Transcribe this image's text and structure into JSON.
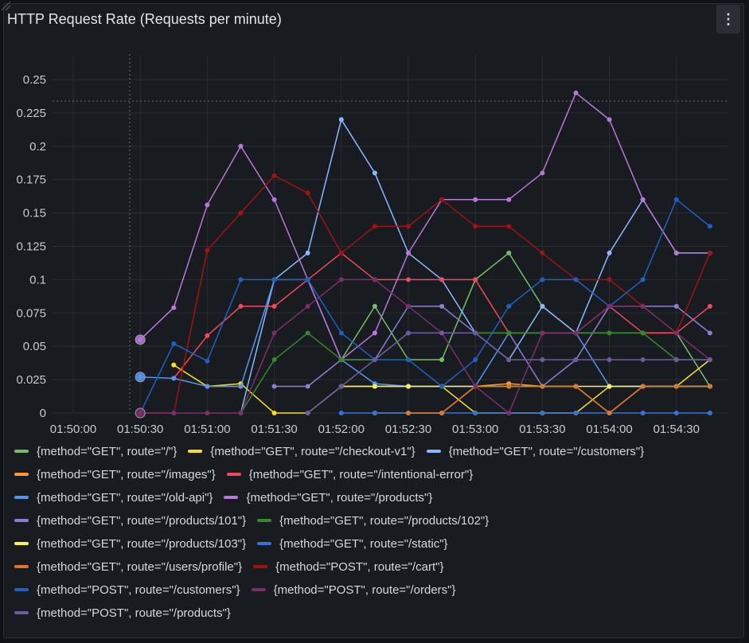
{
  "panel": {
    "title": "HTTP Request Rate (Requests per minute)",
    "menu_icon": "kebab-menu-icon"
  },
  "chart_data": {
    "type": "line",
    "title": "HTTP Request Rate (Requests per minute)",
    "xlabel": "",
    "ylabel": "",
    "ylim": [
      0,
      0.25
    ],
    "y_ticks": [
      "0",
      "0.025",
      "0.05",
      "0.075",
      "0.1",
      "0.125",
      "0.15",
      "0.175",
      "0.2",
      "0.225",
      "0.25"
    ],
    "x_ticks": [
      "01:50:00",
      "01:50:30",
      "01:51:00",
      "01:51:30",
      "01:52:00",
      "01:52:30",
      "01:53:00",
      "01:53:30",
      "01:54:00",
      "01:54:30"
    ],
    "x": [
      "01:50:30",
      "01:50:45",
      "01:51:00",
      "01:51:15",
      "01:51:30",
      "01:51:45",
      "01:52:00",
      "01:52:15",
      "01:52:30",
      "01:52:45",
      "01:53:00",
      "01:53:15",
      "01:53:30",
      "01:53:45",
      "01:54:00",
      "01:54:15",
      "01:54:30",
      "01:54:45"
    ],
    "grid": true,
    "legend_position": "bottom",
    "series": [
      {
        "name": "{method=\"GET\", route=\"/\"}",
        "color": "#73bf69",
        "values": [
          null,
          null,
          0.02,
          0.02,
          null,
          null,
          0.04,
          0.08,
          0.04,
          0.04,
          0.1,
          0.12,
          0.08,
          0.06,
          0.06,
          0.06,
          0.06,
          0.02
        ]
      },
      {
        "name": "{method=\"GET\", route=\"/checkout-v1\"}",
        "color": "#fade2a",
        "values": [
          null,
          0.036,
          0.02,
          0.022,
          0,
          0,
          0.02,
          0.02,
          0.02,
          0.02,
          0,
          0,
          0,
          0,
          0.02,
          0.02,
          0.02,
          0.04
        ]
      },
      {
        "name": "{method=\"GET\", route=\"/customers\"}",
        "color": "#8ab8ff",
        "values": [
          null,
          null,
          null,
          0,
          0.1,
          0.12,
          0.22,
          0.18,
          0.12,
          0.1,
          0.06,
          0.04,
          0.08,
          0.06,
          0.12,
          0.16,
          0.12,
          0.12
        ]
      },
      {
        "name": "{method=\"GET\", route=\"/images\"}",
        "color": "#ff9830",
        "values": [
          null,
          null,
          null,
          null,
          null,
          null,
          null,
          0,
          0,
          0,
          0.02,
          0.022,
          0.02,
          0.02,
          0,
          0.02,
          0.02,
          0.02
        ]
      },
      {
        "name": "{method=\"GET\", route=\"/intentional-error\"}",
        "color": "#f2495c",
        "values": [
          null,
          0.026,
          0.058,
          0.08,
          0.08,
          0.1,
          0.12,
          0.1,
          0.1,
          0.1,
          0.1,
          0.06,
          0.06,
          0.06,
          0.08,
          0.06,
          0.06,
          0.08
        ]
      },
      {
        "name": "{method=\"GET\", route=\"/old-api\"}",
        "color": "#5794f2",
        "values": [
          0.027,
          0.026,
          0.02,
          0.02,
          0.1,
          0.1,
          0.04,
          0.022,
          0.02,
          0.02,
          0.02,
          0.06,
          0.06,
          0.06,
          0.02,
          0.02,
          0.02,
          0.02
        ]
      },
      {
        "name": "{method=\"GET\", route=\"/products\"}",
        "color": "#b877d9",
        "values": [
          0.055,
          0.079,
          0.156,
          0.2,
          0.16,
          0.1,
          0.04,
          0.06,
          0.12,
          0.16,
          0.16,
          0.16,
          0.18,
          0.24,
          0.22,
          0.16,
          0.12,
          0.12
        ]
      },
      {
        "name": "{method=\"GET\", route=\"/products/101\"}",
        "color": "#8f7cd6",
        "values": [
          null,
          null,
          null,
          null,
          0.02,
          0.02,
          0.04,
          0.04,
          0.08,
          0.08,
          0.06,
          0.06,
          0.02,
          0.04,
          0.08,
          0.08,
          0.08,
          0.06
        ]
      },
      {
        "name": "{method=\"GET\", route=\"/products/102\"}",
        "color": "#37872d",
        "values": [
          null,
          null,
          null,
          0,
          0.04,
          0.06,
          0.04,
          0.04,
          0.06,
          0.06,
          0.06,
          0.06,
          0.06,
          0.06,
          0.06,
          0.06,
          0.04,
          0.04
        ]
      },
      {
        "name": "{method=\"GET\", route=\"/products/103\"}",
        "color": "#ffee52",
        "values": [
          null,
          null,
          null,
          null,
          null,
          null,
          0.02,
          0.02,
          0.02,
          0.02,
          0.02,
          0.02,
          0.02,
          0.02,
          0.02,
          0.02,
          0.02,
          0.02
        ]
      },
      {
        "name": "{method=\"GET\", route=\"/static\"}",
        "color": "#3274d9",
        "values": [
          null,
          null,
          null,
          null,
          null,
          null,
          0,
          0,
          0,
          0,
          0,
          0,
          0,
          0,
          0,
          0,
          0,
          0
        ]
      },
      {
        "name": "{method=\"GET\", route=\"/users/profile\"}",
        "color": "#e0752d",
        "values": [
          null,
          null,
          null,
          null,
          null,
          null,
          null,
          null,
          0,
          0,
          0.02,
          0.02,
          0.02,
          0.02,
          0,
          0.02,
          0.02,
          0.02
        ]
      },
      {
        "name": "{method=\"POST\", route=\"/cart\"}",
        "color": "#a11313",
        "values": [
          0,
          0,
          0.122,
          0.15,
          0.178,
          0.165,
          0.12,
          0.14,
          0.14,
          0.16,
          0.14,
          0.14,
          0.12,
          0.1,
          0.1,
          0.08,
          0.06,
          0.12
        ]
      },
      {
        "name": "{method=\"POST\", route=\"/customers\"}",
        "color": "#1f60c4",
        "values": [
          0,
          0.052,
          0.039,
          0.1,
          0.1,
          0.1,
          0.06,
          0.04,
          0.04,
          0.02,
          0.04,
          0.08,
          0.1,
          0.1,
          0.08,
          0.1,
          0.16,
          0.14
        ]
      },
      {
        "name": "{method=\"POST\", route=\"/orders\"}",
        "color": "#7c2e6b",
        "values": [
          0,
          0,
          0,
          0,
          0.06,
          0.08,
          0.1,
          0.1,
          0.08,
          0.06,
          0.02,
          0,
          0.06,
          0.06,
          0.08,
          0.08,
          0.06,
          0.04
        ]
      },
      {
        "name": "{method=\"POST\", route=\"/products\"}",
        "color": "#6d5b9e",
        "values": [
          null,
          null,
          null,
          null,
          null,
          0,
          0.02,
          0.04,
          0.06,
          0.06,
          0.06,
          0.04,
          0.04,
          0.04,
          0.04,
          0.04,
          0.04,
          0.04
        ]
      }
    ]
  },
  "legend_rows": [
    [
      0,
      1,
      2
    ],
    [
      3,
      4
    ],
    [
      5,
      6
    ],
    [
      7,
      8
    ],
    [
      9,
      10
    ],
    [
      11,
      12
    ],
    [
      13,
      14
    ],
    [
      15
    ]
  ]
}
